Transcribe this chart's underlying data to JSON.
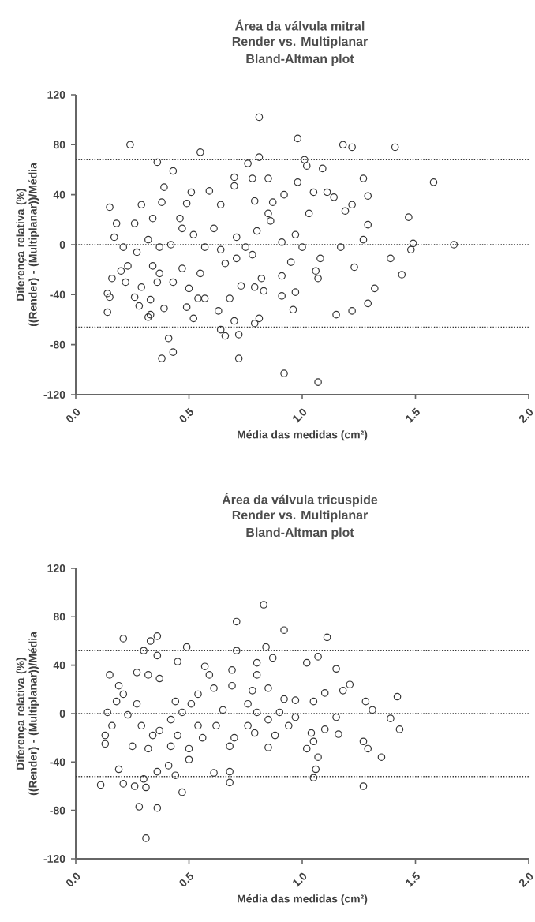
{
  "chart_data": [
    {
      "type": "scatter",
      "title": "Área da válvula mitral",
      "subtitle": "Render vs. Multiplanar",
      "annotations": [
        "Bland-Altman plot"
      ],
      "xlabel": "Média das medidas (cm²)",
      "ylabel": "Diferença relativa (%) ((Render) - (Multiplanar))/Média",
      "xlim": [
        0,
        2
      ],
      "ylim": [
        -120,
        120
      ],
      "xticks": [
        {
          "value": 0,
          "label": "0.0"
        },
        {
          "value": 0.5,
          "label": "0.5"
        },
        {
          "value": 1,
          "label": "1.0"
        },
        {
          "value": 1.5,
          "label": "1.5"
        },
        {
          "value": 2,
          "label": "2.0"
        }
      ],
      "yticks": [
        -120,
        -80,
        -40,
        0,
        40,
        80,
        120
      ],
      "marker": "circle",
      "ref_lines": [
        {
          "axis": "y",
          "value": 68,
          "line_style": "dotted"
        },
        {
          "axis": "y",
          "value": 0,
          "line_style": "dotted"
        },
        {
          "axis": "y",
          "value": -66,
          "line_style": "dotted"
        }
      ],
      "series": [
        {
          "color": "#333333",
          "x": [
            0.81,
            0.24,
            0.55,
            0.98,
            1.18,
            1.22,
            1.41,
            0.36,
            0.43,
            0.81,
            1.01,
            1.09,
            1.02,
            1.58,
            1.47,
            1.67,
            1.49,
            1.48,
            1.39,
            1.44,
            1.32,
            1.29,
            1.22,
            1.15,
            0.92,
            1.07,
            0.38,
            0.43,
            0.41,
            0.72,
            0.64,
            0.66,
            0.72,
            0.79,
            0.81,
            0.7,
            0.63,
            0.52,
            0.49,
            0.32,
            0.33,
            0.14,
            0.14,
            0.15,
            0.26,
            0.28,
            0.33,
            0.39,
            0.16,
            0.2,
            0.22,
            0.29,
            0.36,
            0.43,
            0.5,
            0.57,
            0.54,
            0.68,
            0.73,
            0.79,
            0.83,
            0.82,
            0.91,
            0.97,
            0.91,
            0.96,
            1.07,
            1.06,
            1.08,
            0.95,
            1.17,
            1.23,
            1.27,
            1.29,
            1.29,
            1.27,
            1.22,
            1.19,
            1.14,
            1.11,
            1.03,
            1.05,
            0.98,
            0.92,
            0.87,
            0.85,
            0.79,
            0.78,
            0.85,
            0.7,
            0.7,
            0.76,
            0.64,
            0.59,
            0.51,
            0.49,
            0.46,
            0.39,
            0.38,
            0.34,
            0.29,
            0.26,
            0.15,
            0.18,
            0.17,
            0.21,
            0.27,
            0.32,
            0.37,
            0.42,
            0.47,
            0.52,
            0.57,
            0.64,
            0.61,
            0.71,
            0.75,
            0.8,
            0.86,
            0.91,
            0.97,
            1.0,
            0.47,
            0.55,
            0.66,
            0.71,
            0.78,
            0.34,
            0.37,
            0.23
          ],
          "values": [
            102,
            80,
            74,
            85,
            80,
            78,
            78,
            66,
            59,
            70,
            68,
            61,
            63,
            50,
            22,
            0,
            1,
            -4,
            -11,
            -24,
            -35,
            -47,
            -53,
            -56,
            -103,
            -110,
            -91,
            -86,
            -75,
            -91,
            -68,
            -73,
            -72,
            -63,
            -59,
            -61,
            -53,
            -59,
            -50,
            -58,
            -56,
            -54,
            -39,
            -42,
            -42,
            -49,
            -44,
            -51,
            -27,
            -21,
            -30,
            -34,
            -30,
            -30,
            -35,
            -43,
            -43,
            -43,
            -33,
            -34,
            -37,
            -27,
            -41,
            -38,
            -25,
            -52,
            -27,
            -21,
            -11,
            -14,
            -2,
            -18,
            4,
            16,
            39,
            53,
            32,
            27,
            38,
            42,
            25,
            42,
            50,
            40,
            34,
            25,
            35,
            53,
            53,
            47,
            54,
            65,
            32,
            43,
            42,
            33,
            21,
            46,
            34,
            21,
            32,
            17,
            30,
            17,
            6,
            -2,
            -6,
            4,
            -2,
            0,
            13,
            8,
            -2,
            -4,
            13,
            6,
            -2,
            11,
            19,
            2,
            8,
            -2,
            -19,
            -23,
            -15,
            -11,
            -8,
            -17,
            -23,
            -17
          ]
        }
      ]
    },
    {
      "type": "scatter",
      "title": "Área da válvula tricuspide",
      "subtitle": "Render vs. Multiplanar",
      "annotations": [
        "Bland-Altman plot"
      ],
      "xlabel": "Média das medidas (cm²)",
      "ylabel": "Diferença relativa (%) ((Render) - (Multiplanar))/Média",
      "xlim": [
        0,
        2
      ],
      "ylim": [
        -120,
        120
      ],
      "xticks": [
        {
          "value": 0,
          "label": "0.0"
        },
        {
          "value": 0.5,
          "label": "0.5"
        },
        {
          "value": 1,
          "label": "1.0"
        },
        {
          "value": 1.5,
          "label": "1.5"
        },
        {
          "value": 2,
          "label": "2.0"
        }
      ],
      "yticks": [
        -120,
        -80,
        -40,
        0,
        40,
        80,
        120
      ],
      "marker": "circle",
      "ref_lines": [
        {
          "axis": "y",
          "value": 52,
          "line_style": "dotted"
        },
        {
          "axis": "y",
          "value": 0,
          "line_style": "dotted"
        },
        {
          "axis": "y",
          "value": -52,
          "line_style": "dotted"
        }
      ],
      "series": [
        {
          "color": "#333333",
          "x": [
            0.83,
            0.71,
            0.92,
            1.11,
            0.21,
            0.36,
            0.33,
            0.3,
            0.49,
            0.71,
            0.84,
            0.36,
            0.45,
            0.57,
            1.02,
            1.07,
            1.15,
            1.21,
            1.1,
            1.18,
            1.28,
            1.31,
            1.42,
            1.39,
            1.43,
            1.27,
            1.29,
            1.35,
            1.27,
            1.05,
            1.06,
            1.07,
            1.02,
            1.05,
            1.04,
            1.1,
            1.16,
            1.15,
            1.05,
            0.97,
            0.92,
            0.87,
            0.8,
            0.8,
            0.85,
            0.85,
            0.88,
            0.94,
            0.78,
            0.69,
            0.69,
            0.59,
            0.61,
            0.65,
            0.62,
            0.7,
            0.68,
            0.68,
            0.68,
            0.61,
            0.47,
            0.44,
            0.5,
            0.5,
            0.41,
            0.36,
            0.3,
            0.31,
            0.26,
            0.21,
            0.11,
            0.19,
            0.28,
            0.36,
            0.31,
            0.13,
            0.13,
            0.16,
            0.14,
            0.18,
            0.19,
            0.15,
            0.27,
            0.32,
            0.37,
            0.21,
            0.23,
            0.27,
            0.29,
            0.25,
            0.32,
            0.34,
            0.37,
            0.42,
            0.47,
            0.51,
            0.54,
            0.54,
            0.56,
            0.44,
            0.45,
            0.42,
            0.76,
            0.8,
            0.85,
            0.9,
            0.97,
            0.76,
            0.79
          ],
          "values": [
            90,
            76,
            69,
            63,
            62,
            64,
            60,
            52,
            55,
            52,
            55,
            48,
            43,
            39,
            42,
            47,
            37,
            24,
            17,
            19,
            10,
            3,
            14,
            -4,
            -13,
            -23,
            -29,
            -36,
            -60,
            -53,
            -46,
            -36,
            -29,
            -23,
            -16,
            -13,
            -17,
            -3,
            10,
            11,
            12,
            46,
            42,
            32,
            21,
            -28,
            -18,
            -10,
            19,
            23,
            36,
            32,
            21,
            3,
            -10,
            -20,
            -27,
            -48,
            -57,
            -49,
            -65,
            -51,
            -38,
            -29,
            -43,
            -48,
            -54,
            -61,
            -60,
            -58,
            -59,
            -46,
            -77,
            -78,
            -103,
            -25,
            -18,
            -10,
            1,
            10,
            23,
            32,
            34,
            32,
            29,
            16,
            -1,
            8,
            -10,
            -27,
            -29,
            -18,
            -14,
            -5,
            1,
            8,
            16,
            -10,
            -20,
            10,
            -18,
            -27,
            8,
            1,
            -5,
            1,
            -3,
            -10,
            -16
          ]
        }
      ]
    }
  ]
}
